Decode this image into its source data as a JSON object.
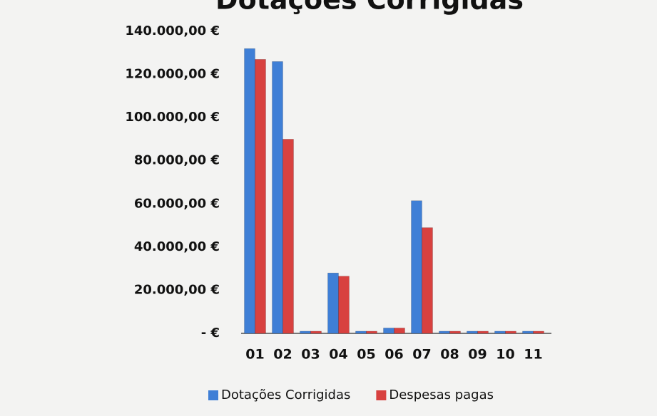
{
  "chart_data": {
    "type": "bar",
    "title": "Dotações Corrigidas",
    "categories": [
      "01",
      "02",
      "03",
      "04",
      "05",
      "06",
      "07",
      "08",
      "09",
      "10",
      "11"
    ],
    "series": [
      {
        "name": "Dotações Corrigidas",
        "color": "#3f7fd6",
        "values": [
          132000,
          126000,
          1000,
          28000,
          1000,
          2500,
          61500,
          1000,
          1000,
          1000,
          1000
        ]
      },
      {
        "name": "Despesas pagas",
        "color": "#d8413f",
        "values": [
          127000,
          90000,
          1000,
          26500,
          1000,
          2500,
          49000,
          1000,
          1000,
          1000,
          1000
        ]
      }
    ],
    "ylim": [
      0,
      140000
    ],
    "yticks": [
      {
        "value": 0,
        "label": "-   €"
      },
      {
        "value": 20000,
        "label": "20.000,00 €"
      },
      {
        "value": 40000,
        "label": "40.000,00 €"
      },
      {
        "value": 60000,
        "label": "60.000,00 €"
      },
      {
        "value": 80000,
        "label": "80.000,00 €"
      },
      {
        "value": 100000,
        "label": "100.000,00 €"
      },
      {
        "value": 120000,
        "label": "120.000,00 €"
      },
      {
        "value": 140000,
        "label": "140.000,00 €"
      }
    ],
    "grid": false,
    "legend": "bottom"
  }
}
